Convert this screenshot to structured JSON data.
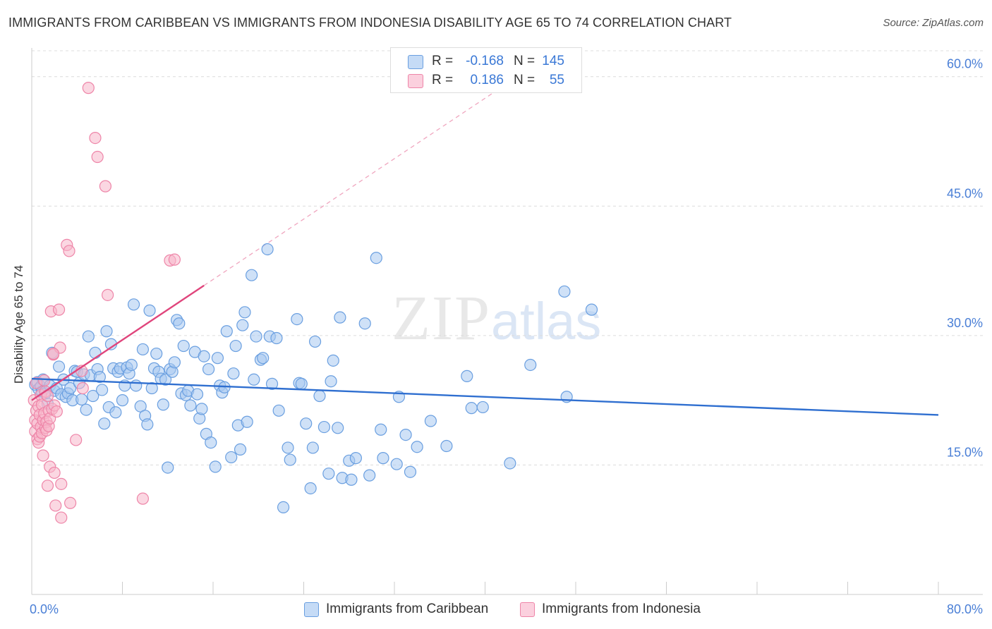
{
  "title": "IMMIGRANTS FROM CARIBBEAN VS IMMIGRANTS FROM INDONESIA DISABILITY AGE 65 TO 74 CORRELATION CHART",
  "source": "Source: ZipAtlas.com",
  "watermark": {
    "zip": "ZIP",
    "atlas": "atlas"
  },
  "legend": {
    "rows": [
      {
        "r_label": "R =",
        "r_value": "-0.168",
        "n_label": "N =",
        "n_value": "145",
        "color": "#a8c8f0"
      },
      {
        "r_label": "R =",
        "r_value": "0.186",
        "n_label": "N =",
        "n_value": "55",
        "color": "#f7b6cb"
      }
    ]
  },
  "chart_data": {
    "type": "scatter",
    "title": "IMMIGRANTS FROM CARIBBEAN VS IMMIGRANTS FROM INDONESIA DISABILITY AGE 65 TO 74 CORRELATION CHART",
    "xlabel": "",
    "ylabel": "Disability Age 65 to 74",
    "xlim": [
      0,
      80
    ],
    "ylim": [
      0,
      63
    ],
    "x_tick_labels": [
      {
        "x": 0,
        "label": "0.0%"
      },
      {
        "x": 80,
        "label": "80.0%"
      }
    ],
    "y_ticks": [
      {
        "y": 15,
        "label": "15.0%"
      },
      {
        "y": 30,
        "label": "30.0%"
      },
      {
        "y": 45,
        "label": "45.0%"
      },
      {
        "y": 60,
        "label": "60.0%"
      }
    ],
    "grid": true,
    "legend_position": "bottom",
    "series": [
      {
        "name": "Immigrants from Caribbean",
        "color": "#a8c8f0",
        "stroke": "#6a9fe0",
        "trend": {
          "x1": 0,
          "y1": 25.0,
          "x2": 80,
          "y2": 20.8,
          "color": "#2f6fd0"
        },
        "points": [
          [
            0.3,
            24.3
          ],
          [
            0.5,
            24.6
          ],
          [
            0.6,
            23.8
          ],
          [
            0.8,
            24.1
          ],
          [
            0.9,
            23.5
          ],
          [
            1.0,
            24.9
          ],
          [
            1.2,
            23.3
          ],
          [
            1.4,
            22.1
          ],
          [
            1.6,
            24.2
          ],
          [
            1.8,
            28.0
          ],
          [
            2.0,
            23.6
          ],
          [
            2.2,
            23.9
          ],
          [
            2.4,
            26.4
          ],
          [
            2.6,
            23.2
          ],
          [
            2.8,
            24.9
          ],
          [
            3.0,
            22.9
          ],
          [
            3.2,
            23.3
          ],
          [
            3.4,
            23.9
          ],
          [
            3.6,
            22.5
          ],
          [
            3.8,
            25.9
          ],
          [
            4.0,
            25.8
          ],
          [
            4.2,
            24.5
          ],
          [
            4.4,
            22.6
          ],
          [
            4.6,
            25.5
          ],
          [
            4.8,
            21.4
          ],
          [
            5.0,
            29.9
          ],
          [
            5.2,
            25.4
          ],
          [
            5.4,
            23.0
          ],
          [
            5.6,
            28.0
          ],
          [
            5.8,
            26.1
          ],
          [
            6.0,
            25.2
          ],
          [
            6.2,
            23.7
          ],
          [
            6.4,
            19.8
          ],
          [
            6.6,
            30.5
          ],
          [
            6.8,
            21.7
          ],
          [
            7.0,
            29.0
          ],
          [
            7.2,
            26.2
          ],
          [
            7.4,
            21.1
          ],
          [
            7.6,
            25.8
          ],
          [
            7.8,
            26.2
          ],
          [
            8.0,
            22.5
          ],
          [
            8.2,
            24.2
          ],
          [
            8.4,
            26.3
          ],
          [
            8.6,
            25.6
          ],
          [
            8.8,
            26.6
          ],
          [
            9.0,
            33.6
          ],
          [
            9.2,
            24.2
          ],
          [
            9.6,
            21.8
          ],
          [
            9.8,
            28.4
          ],
          [
            10.0,
            20.7
          ],
          [
            10.2,
            19.7
          ],
          [
            10.4,
            32.9
          ],
          [
            10.6,
            23.9
          ],
          [
            10.8,
            26.2
          ],
          [
            11.0,
            27.9
          ],
          [
            11.2,
            25.8
          ],
          [
            11.4,
            25.0
          ],
          [
            11.6,
            22.0
          ],
          [
            11.8,
            24.9
          ],
          [
            12.0,
            14.7
          ],
          [
            12.2,
            26.1
          ],
          [
            12.4,
            25.8
          ],
          [
            12.6,
            26.9
          ],
          [
            12.8,
            31.8
          ],
          [
            13.0,
            31.4
          ],
          [
            13.2,
            23.3
          ],
          [
            13.4,
            28.8
          ],
          [
            13.6,
            23.1
          ],
          [
            13.8,
            23.6
          ],
          [
            14.0,
            21.9
          ],
          [
            14.4,
            28.1
          ],
          [
            14.6,
            23.2
          ],
          [
            14.8,
            20.4
          ],
          [
            15.0,
            21.5
          ],
          [
            15.2,
            27.6
          ],
          [
            15.4,
            18.6
          ],
          [
            15.6,
            26.1
          ],
          [
            15.8,
            17.6
          ],
          [
            16.2,
            14.8
          ],
          [
            16.4,
            27.4
          ],
          [
            16.6,
            24.2
          ],
          [
            16.8,
            23.4
          ],
          [
            17.0,
            24.0
          ],
          [
            17.2,
            30.5
          ],
          [
            17.6,
            15.9
          ],
          [
            17.8,
            25.6
          ],
          [
            18.0,
            28.8
          ],
          [
            18.2,
            19.6
          ],
          [
            18.4,
            16.8
          ],
          [
            18.6,
            31.2
          ],
          [
            18.8,
            32.7
          ],
          [
            19.0,
            20.0
          ],
          [
            19.4,
            37.0
          ],
          [
            19.6,
            24.9
          ],
          [
            19.8,
            29.9
          ],
          [
            20.2,
            27.2
          ],
          [
            20.4,
            27.4
          ],
          [
            20.8,
            40.0
          ],
          [
            21.0,
            29.9
          ],
          [
            21.2,
            24.4
          ],
          [
            21.6,
            29.7
          ],
          [
            21.8,
            21.3
          ],
          [
            22.2,
            10.1
          ],
          [
            22.6,
            17.0
          ],
          [
            22.8,
            15.6
          ],
          [
            23.4,
            31.9
          ],
          [
            23.6,
            24.5
          ],
          [
            23.8,
            24.4
          ],
          [
            24.2,
            19.8
          ],
          [
            24.6,
            12.3
          ],
          [
            24.8,
            17.0
          ],
          [
            25.0,
            29.3
          ],
          [
            25.4,
            23.0
          ],
          [
            25.8,
            19.4
          ],
          [
            26.2,
            14.0
          ],
          [
            26.4,
            24.7
          ],
          [
            26.6,
            27.1
          ],
          [
            27.0,
            19.3
          ],
          [
            27.2,
            32.1
          ],
          [
            27.4,
            13.5
          ],
          [
            28.0,
            15.5
          ],
          [
            28.2,
            13.3
          ],
          [
            28.6,
            15.8
          ],
          [
            29.4,
            31.4
          ],
          [
            29.8,
            13.8
          ],
          [
            30.4,
            39.0
          ],
          [
            30.8,
            19.1
          ],
          [
            31.0,
            15.8
          ],
          [
            32.2,
            15.1
          ],
          [
            32.4,
            22.9
          ],
          [
            33.0,
            18.5
          ],
          [
            33.4,
            14.2
          ],
          [
            34.0,
            17.1
          ],
          [
            35.2,
            20.1
          ],
          [
            36.6,
            17.2
          ],
          [
            38.4,
            25.3
          ],
          [
            38.8,
            21.6
          ],
          [
            39.8,
            21.7
          ],
          [
            42.2,
            15.2
          ],
          [
            44.0,
            26.6
          ],
          [
            47.0,
            35.1
          ],
          [
            47.2,
            22.9
          ],
          [
            49.4,
            33.0
          ]
        ]
      },
      {
        "name": "Immigrants from Indonesia",
        "color": "#f7b6cb",
        "stroke": "#ee85a8",
        "trend": {
          "x1": 0,
          "y1": 22.5,
          "x2": 15.2,
          "y2": 35.8,
          "color": "#e0457c",
          "dash_to": {
            "x": 40.8,
            "y": 58.2
          }
        },
        "points": [
          [
            0.2,
            22.5
          ],
          [
            0.3,
            20.2
          ],
          [
            0.3,
            18.9
          ],
          [
            0.4,
            21.3
          ],
          [
            0.4,
            24.5
          ],
          [
            0.5,
            18.0
          ],
          [
            0.5,
            19.8
          ],
          [
            0.6,
            17.6
          ],
          [
            0.6,
            21.8
          ],
          [
            0.7,
            20.8
          ],
          [
            0.7,
            18.3
          ],
          [
            0.8,
            23.1
          ],
          [
            0.8,
            19.4
          ],
          [
            0.9,
            22.0
          ],
          [
            0.9,
            18.7
          ],
          [
            1.0,
            20.2
          ],
          [
            1.0,
            16.1
          ],
          [
            1.1,
            24.8
          ],
          [
            1.1,
            21.0
          ],
          [
            1.2,
            23.5
          ],
          [
            1.2,
            19.3
          ],
          [
            1.3,
            20.0
          ],
          [
            1.3,
            19.0
          ],
          [
            1.4,
            23.0
          ],
          [
            1.4,
            12.6
          ],
          [
            1.5,
            19.5
          ],
          [
            1.5,
            21.3
          ],
          [
            1.6,
            20.4
          ],
          [
            1.6,
            14.8
          ],
          [
            1.7,
            32.8
          ],
          [
            1.8,
            21.5
          ],
          [
            1.9,
            27.8
          ],
          [
            2.0,
            21.9
          ],
          [
            2.0,
            14.1
          ],
          [
            2.1,
            10.3
          ],
          [
            2.2,
            21.2
          ],
          [
            2.4,
            33.0
          ],
          [
            2.5,
            28.6
          ],
          [
            2.6,
            12.8
          ],
          [
            2.6,
            8.9
          ],
          [
            3.1,
            40.5
          ],
          [
            3.3,
            39.8
          ],
          [
            3.4,
            10.6
          ],
          [
            3.9,
            17.9
          ],
          [
            4.4,
            25.9
          ],
          [
            4.5,
            23.9
          ],
          [
            5.0,
            58.7
          ],
          [
            5.6,
            52.9
          ],
          [
            5.8,
            50.7
          ],
          [
            6.5,
            47.3
          ],
          [
            6.7,
            34.7
          ],
          [
            9.8,
            11.1
          ],
          [
            12.2,
            38.7
          ],
          [
            12.6,
            38.8
          ],
          [
            1.9,
            27.9
          ]
        ]
      }
    ]
  }
}
